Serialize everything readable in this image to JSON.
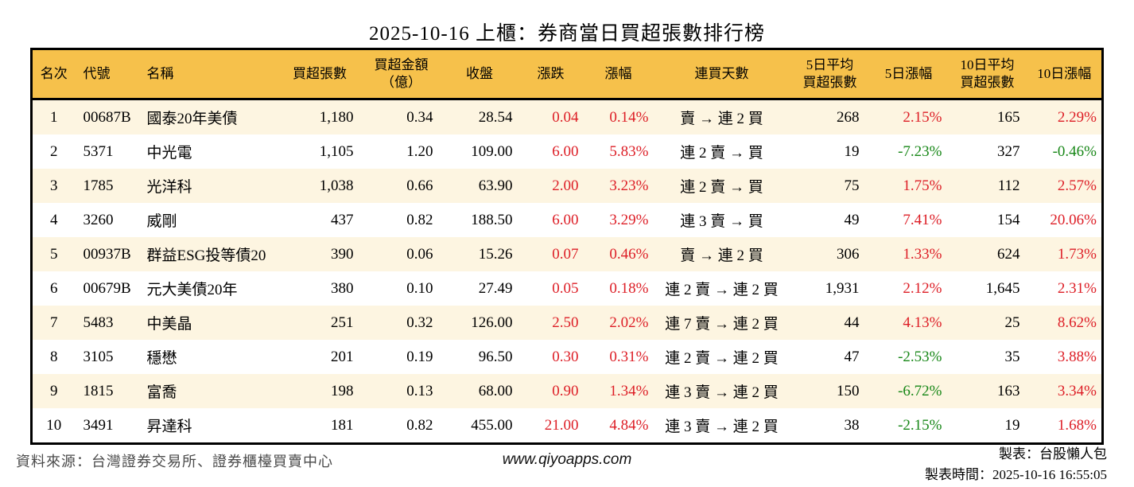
{
  "title": "2025-10-16 上櫃：券商當日買超張數排行榜",
  "chart_data": {
    "type": "table",
    "title": "2025-10-16 上櫃：券商當日買超張數排行榜",
    "columns": [
      "名次",
      "代號",
      "名稱",
      "買超張數",
      "買超金額\n（億）",
      "收盤",
      "漲跌",
      "漲幅",
      "連買天數",
      "5日平均\n買超張數",
      "5日漲幅",
      "10日平均\n買超張數",
      "10日漲幅"
    ],
    "fields": [
      "rank",
      "code",
      "name",
      "net_buy_lots",
      "net_buy_amount_100m",
      "close",
      "change",
      "change_pct",
      "buy_streak",
      "avg5_net_buy_lots",
      "pct_5d",
      "avg10_net_buy_lots",
      "pct_10d"
    ],
    "rows": [
      {
        "rank": "1",
        "code": "00687B",
        "name": "國泰20年美債",
        "net_buy_lots": "1,180",
        "net_buy_amount_100m": "0.34",
        "close": "28.54",
        "change": "0.04",
        "change_pct": "0.14%",
        "buy_streak": "賣 → 連 2 買",
        "avg5_net_buy_lots": "268",
        "pct_5d": "2.15%",
        "avg10_net_buy_lots": "165",
        "pct_10d": "2.29%"
      },
      {
        "rank": "2",
        "code": "5371",
        "name": "中光電",
        "net_buy_lots": "1,105",
        "net_buy_amount_100m": "1.20",
        "close": "109.00",
        "change": "6.00",
        "change_pct": "5.83%",
        "buy_streak": "連 2 賣 → 買",
        "avg5_net_buy_lots": "19",
        "pct_5d": "-7.23%",
        "avg10_net_buy_lots": "327",
        "pct_10d": "-0.46%"
      },
      {
        "rank": "3",
        "code": "1785",
        "name": "光洋科",
        "net_buy_lots": "1,038",
        "net_buy_amount_100m": "0.66",
        "close": "63.90",
        "change": "2.00",
        "change_pct": "3.23%",
        "buy_streak": "連 2 賣 → 買",
        "avg5_net_buy_lots": "75",
        "pct_5d": "1.75%",
        "avg10_net_buy_lots": "112",
        "pct_10d": "2.57%"
      },
      {
        "rank": "4",
        "code": "3260",
        "name": "威剛",
        "net_buy_lots": "437",
        "net_buy_amount_100m": "0.82",
        "close": "188.50",
        "change": "6.00",
        "change_pct": "3.29%",
        "buy_streak": "連 3 賣 → 買",
        "avg5_net_buy_lots": "49",
        "pct_5d": "7.41%",
        "avg10_net_buy_lots": "154",
        "pct_10d": "20.06%"
      },
      {
        "rank": "5",
        "code": "00937B",
        "name": "群益ESG投等債20",
        "net_buy_lots": "390",
        "net_buy_amount_100m": "0.06",
        "close": "15.26",
        "change": "0.07",
        "change_pct": "0.46%",
        "buy_streak": "賣 → 連 2 買",
        "avg5_net_buy_lots": "306",
        "pct_5d": "1.33%",
        "avg10_net_buy_lots": "624",
        "pct_10d": "1.73%"
      },
      {
        "rank": "6",
        "code": "00679B",
        "name": "元大美債20年",
        "net_buy_lots": "380",
        "net_buy_amount_100m": "0.10",
        "close": "27.49",
        "change": "0.05",
        "change_pct": "0.18%",
        "buy_streak": "連 2 賣 → 連 2 買",
        "avg5_net_buy_lots": "1,931",
        "pct_5d": "2.12%",
        "avg10_net_buy_lots": "1,645",
        "pct_10d": "2.31%"
      },
      {
        "rank": "7",
        "code": "5483",
        "name": "中美晶",
        "net_buy_lots": "251",
        "net_buy_amount_100m": "0.32",
        "close": "126.00",
        "change": "2.50",
        "change_pct": "2.02%",
        "buy_streak": "連 7 賣 → 連 2 買",
        "avg5_net_buy_lots": "44",
        "pct_5d": "4.13%",
        "avg10_net_buy_lots": "25",
        "pct_10d": "8.62%"
      },
      {
        "rank": "8",
        "code": "3105",
        "name": "穩懋",
        "net_buy_lots": "201",
        "net_buy_amount_100m": "0.19",
        "close": "96.50",
        "change": "0.30",
        "change_pct": "0.31%",
        "buy_streak": "連 2 賣 → 連 2 買",
        "avg5_net_buy_lots": "47",
        "pct_5d": "-2.53%",
        "avg10_net_buy_lots": "35",
        "pct_10d": "3.88%"
      },
      {
        "rank": "9",
        "code": "1815",
        "name": "富喬",
        "net_buy_lots": "198",
        "net_buy_amount_100m": "0.13",
        "close": "68.00",
        "change": "0.90",
        "change_pct": "1.34%",
        "buy_streak": "連 3 賣 → 連 2 買",
        "avg5_net_buy_lots": "150",
        "pct_5d": "-6.72%",
        "avg10_net_buy_lots": "163",
        "pct_10d": "3.34%"
      },
      {
        "rank": "10",
        "code": "3491",
        "name": "昇達科",
        "net_buy_lots": "181",
        "net_buy_amount_100m": "0.82",
        "close": "455.00",
        "change": "21.00",
        "change_pct": "4.84%",
        "buy_streak": "連 3 賣 → 連 2 買",
        "avg5_net_buy_lots": "38",
        "pct_5d": "-2.15%",
        "avg10_net_buy_lots": "19",
        "pct_10d": "1.68%"
      }
    ]
  },
  "footer": {
    "source": "資料來源：台灣證券交易所、證券櫃檯買賣中心",
    "site": "www.qiyoapps.com",
    "maker": "製表：台股懶人包",
    "made_time": "製表時間：2025-10-16 16:55:05"
  },
  "colors": {
    "header_bg": "#F6C14B",
    "row_alt_bg": "#FDF5E1",
    "up_red": "#DD1E26",
    "down_green": "#178717",
    "border_black": "#000000"
  }
}
